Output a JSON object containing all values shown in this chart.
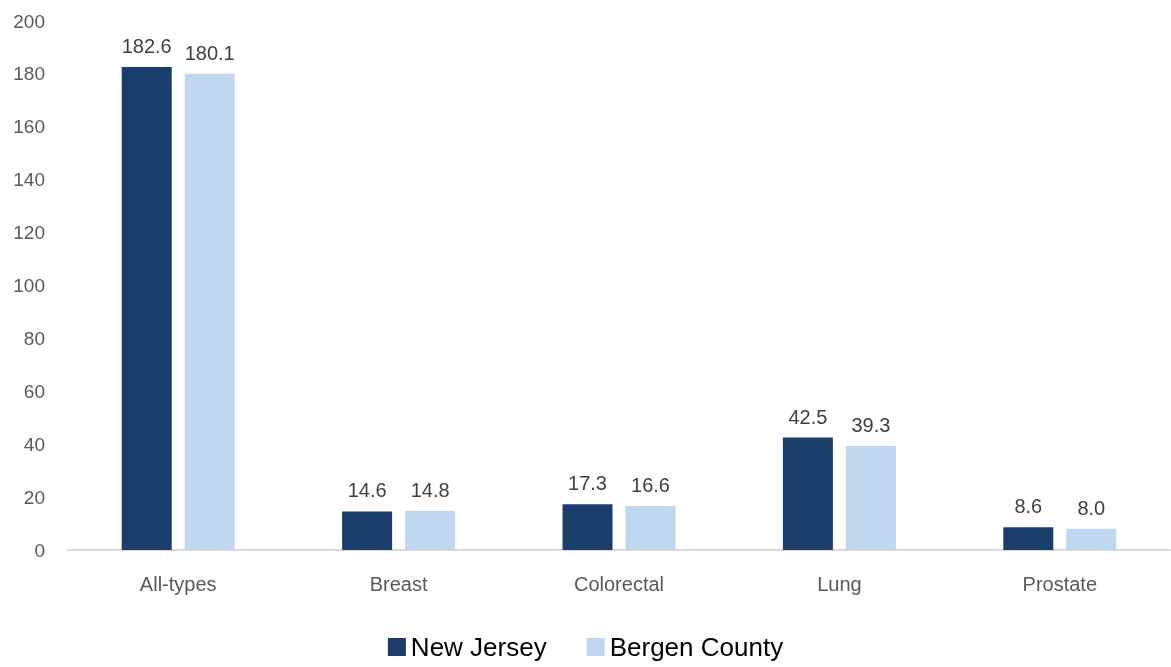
{
  "chart_data": {
    "type": "bar",
    "categories": [
      "All-types",
      "Breast",
      "Colorectal",
      "Lung",
      "Prostate"
    ],
    "series": [
      {
        "name": "New Jersey",
        "color": "#1a3d6b",
        "values": [
          182.6,
          14.6,
          17.3,
          42.5,
          8.6
        ],
        "value_labels": [
          "182.6",
          "14.6",
          "17.3",
          "42.5",
          "8.6"
        ]
      },
      {
        "name": "Bergen County",
        "color": "#c0d7f0",
        "values": [
          180.1,
          14.8,
          16.6,
          39.3,
          8.0
        ],
        "value_labels": [
          "180.1",
          "14.8",
          "16.6",
          "39.3",
          "8.0"
        ]
      }
    ],
    "ylim": [
      0,
      200
    ],
    "yticks": [
      0,
      20,
      40,
      60,
      80,
      100,
      120,
      140,
      160,
      180,
      200
    ],
    "grid": false,
    "legend": "bottom"
  }
}
